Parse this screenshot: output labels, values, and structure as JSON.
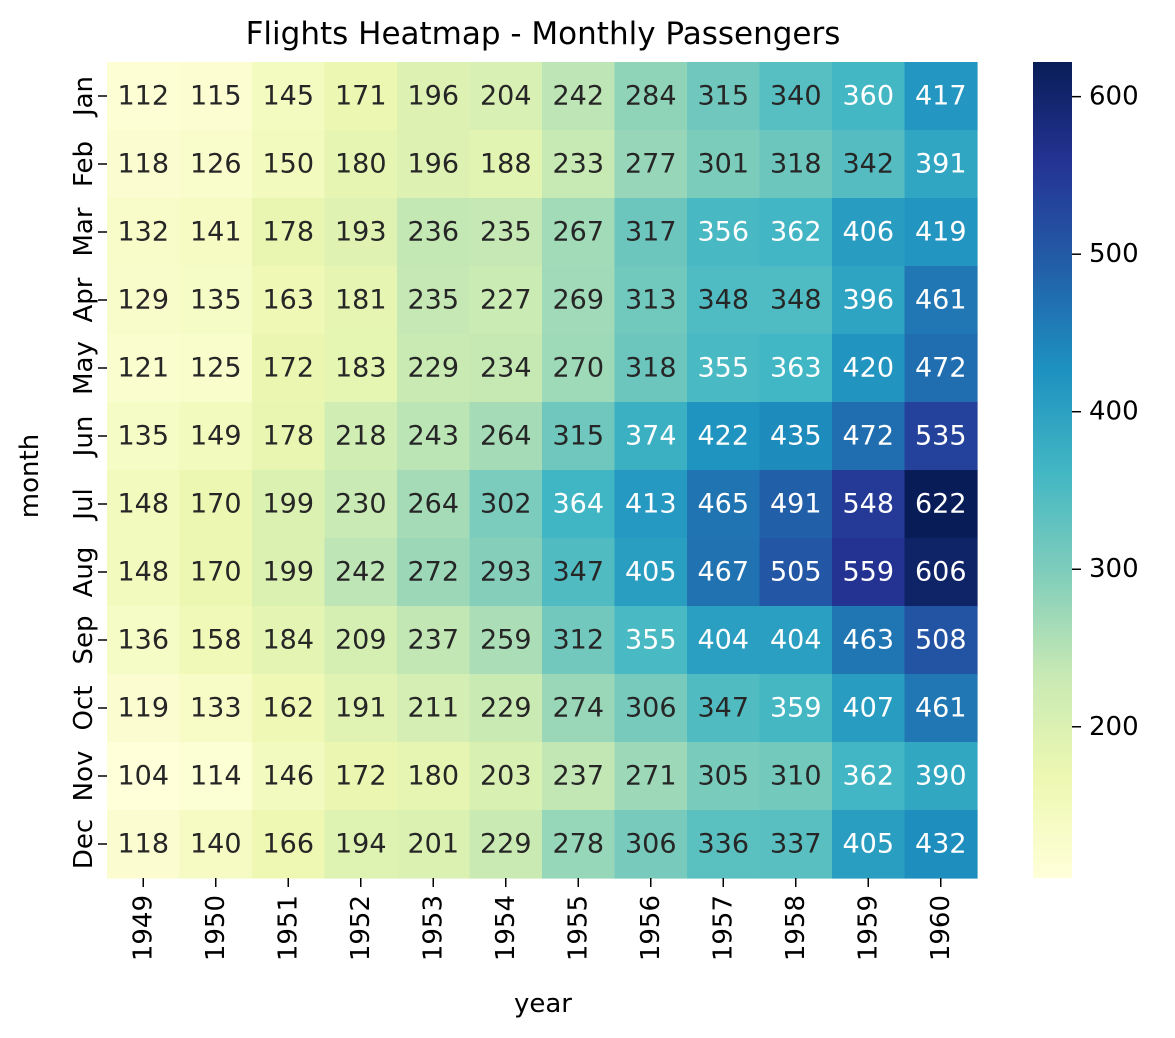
{
  "chart_data": {
    "type": "heatmap",
    "title": "Flights Heatmap - Monthly Passengers",
    "xlabel": "year",
    "ylabel": "month",
    "x_categories": [
      "1949",
      "1950",
      "1951",
      "1952",
      "1953",
      "1954",
      "1955",
      "1956",
      "1957",
      "1958",
      "1959",
      "1960"
    ],
    "y_categories": [
      "Jan",
      "Feb",
      "Mar",
      "Apr",
      "May",
      "Jun",
      "Jul",
      "Aug",
      "Sep",
      "Oct",
      "Nov",
      "Dec"
    ],
    "values": [
      [
        112,
        115,
        145,
        171,
        196,
        204,
        242,
        284,
        315,
        340,
        360,
        417
      ],
      [
        118,
        126,
        150,
        180,
        196,
        188,
        233,
        277,
        301,
        318,
        342,
        391
      ],
      [
        132,
        141,
        178,
        193,
        236,
        235,
        267,
        317,
        356,
        362,
        406,
        419
      ],
      [
        129,
        135,
        163,
        181,
        235,
        227,
        269,
        313,
        348,
        348,
        396,
        461
      ],
      [
        121,
        125,
        172,
        183,
        229,
        234,
        270,
        318,
        355,
        363,
        420,
        472
      ],
      [
        135,
        149,
        178,
        218,
        243,
        264,
        315,
        374,
        422,
        435,
        472,
        535
      ],
      [
        148,
        170,
        199,
        230,
        264,
        302,
        364,
        413,
        465,
        491,
        548,
        622
      ],
      [
        148,
        170,
        199,
        242,
        272,
        293,
        347,
        405,
        467,
        505,
        559,
        606
      ],
      [
        136,
        158,
        184,
        209,
        237,
        259,
        312,
        355,
        404,
        404,
        463,
        508
      ],
      [
        119,
        133,
        162,
        191,
        211,
        229,
        274,
        306,
        347,
        359,
        407,
        461
      ],
      [
        104,
        114,
        146,
        172,
        180,
        203,
        237,
        271,
        305,
        310,
        362,
        390
      ],
      [
        118,
        140,
        166,
        194,
        201,
        229,
        278,
        306,
        336,
        337,
        405,
        432
      ]
    ],
    "colormap": "YlGnBu",
    "vmin": 104,
    "vmax": 622,
    "colorbar_ticks": [
      200,
      300,
      400,
      500,
      600
    ],
    "annotated": true,
    "colors": {
      "text_dark": "#262626",
      "text_light": "#ffffff",
      "axis": "#000000"
    }
  }
}
